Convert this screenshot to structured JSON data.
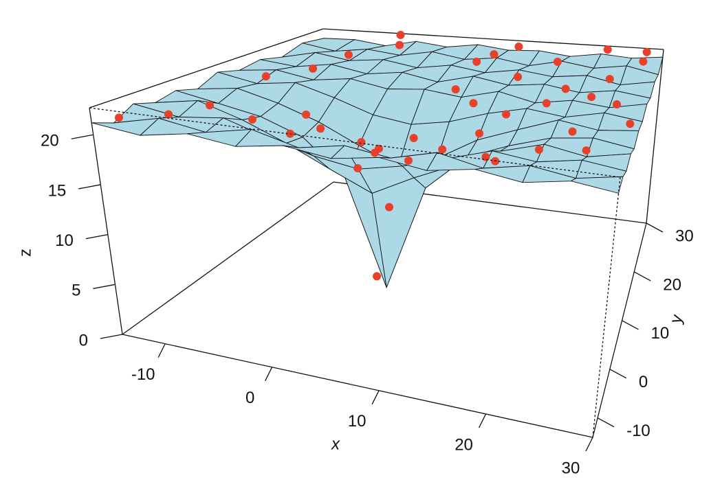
{
  "chart_data": {
    "type": "surface3d",
    "x_label": "x",
    "y_label": "y",
    "z_label": "z",
    "xlim": [
      -14,
      30
    ],
    "ylim": [
      -14,
      30
    ],
    "zlim": [
      0,
      22.7
    ],
    "xticks": [
      -10,
      0,
      10,
      20,
      30
    ],
    "yticks": [
      -10,
      0,
      10,
      20,
      30
    ],
    "zticks": [
      0,
      5,
      10,
      15,
      20
    ],
    "surface_color": "#add8e6",
    "point_color": "#e8402a",
    "x": [
      -14,
      -10,
      -6,
      -2,
      2,
      6,
      10,
      14,
      18,
      22,
      26,
      30
    ],
    "y": [
      -14,
      -10,
      -6,
      -2,
      2,
      6,
      10,
      14,
      18,
      22,
      26,
      30
    ],
    "z": [
      [
        21.2,
        20.4,
        21.6,
        20.9,
        21.4,
        20.7,
        21.8,
        21.1,
        21.5,
        20.8,
        21.7,
        21.3
      ],
      [
        20.6,
        21.5,
        20.8,
        21.7,
        20.5,
        21.3,
        20.9,
        21.6,
        21.0,
        21.8,
        20.9,
        21.4
      ],
      [
        21.4,
        20.7,
        21.3,
        20.2,
        19.6,
        20.1,
        21.5,
        20.8,
        21.7,
        21.1,
        21.5,
        20.8
      ],
      [
        20.8,
        21.6,
        19.8,
        18.3,
        17.9,
        18.5,
        20.2,
        21.4,
        20.9,
        21.6,
        21.0,
        21.7
      ],
      [
        21.5,
        20.4,
        18.6,
        16.2,
        14.1,
        16.4,
        18.7,
        20.6,
        21.5,
        20.9,
        21.8,
        21.2
      ],
      [
        20.9,
        21.2,
        17.9,
        14.3,
        3.0,
        14.6,
        18.1,
        21.0,
        20.7,
        21.6,
        21.1,
        21.8
      ],
      [
        21.6,
        20.6,
        18.8,
        16.5,
        14.2,
        16.1,
        18.9,
        20.5,
        21.8,
        21.0,
        21.6,
        21.3
      ],
      [
        21.0,
        21.7,
        20.1,
        18.4,
        18.0,
        18.6,
        20.3,
        21.6,
        21.1,
        21.7,
        20.9,
        21.5
      ],
      [
        21.7,
        20.8,
        21.4,
        20.3,
        19.7,
        20.2,
        21.3,
        20.7,
        21.6,
        21.2,
        21.8,
        21.0
      ],
      [
        21.1,
        21.6,
        20.9,
        21.5,
        21.0,
        21.7,
        20.8,
        21.4,
        21.0,
        21.7,
        21.2,
        21.6
      ],
      [
        21.8,
        21.0,
        21.6,
        20.8,
        21.5,
        21.1,
        21.7,
        21.0,
        21.6,
        20.9,
        21.8,
        21.3
      ],
      [
        21.3,
        21.7,
        21.1,
        21.6,
        20.9,
        21.5,
        21.2,
        21.8,
        21.1,
        21.6,
        21.0,
        21.7
      ]
    ],
    "points": {
      "x": [
        -13,
        -10,
        -8,
        -6,
        -5,
        -3,
        -2,
        0,
        1,
        2,
        3,
        4,
        5,
        5,
        6,
        7,
        8,
        9,
        10,
        11,
        12,
        13,
        14,
        15,
        16,
        17,
        18,
        19,
        20,
        21,
        22,
        23,
        24,
        25,
        26,
        27,
        28,
        29,
        -9,
        -4,
        10,
        18,
        24,
        28
      ],
      "y": [
        -11,
        -8,
        -4,
        14,
        20,
        -7,
        26,
        -2,
        -9,
        -4,
        4,
        0,
        2,
        6,
        -1,
        -3,
        3,
        22,
        12,
        -6,
        28,
        8,
        -8,
        18,
        -2,
        5,
        24,
        -10,
        10,
        15,
        -5,
        29,
        2,
        20,
        -3,
        12,
        26,
        7,
        10,
        30,
        25,
        -9,
        14,
        29
      ],
      "z": [
        21.3,
        21.5,
        21.9,
        22.2,
        22.5,
        21.8,
        22.4,
        21.6,
        21.4,
        20.9,
        17.5,
        16.0,
        4.0,
        10.0,
        18.2,
        19.3,
        16.5,
        22.3,
        22.0,
        21.7,
        22.6,
        21.9,
        21.5,
        22.2,
        21.8,
        22.0,
        22.4,
        21.6,
        22.1,
        22.3,
        21.8,
        22.6,
        21.9,
        22.2,
        21.7,
        22.1,
        22.5,
        21.8,
        21.9,
        22.5,
        22.4,
        21.6,
        22.0,
        22.6
      ]
    }
  }
}
